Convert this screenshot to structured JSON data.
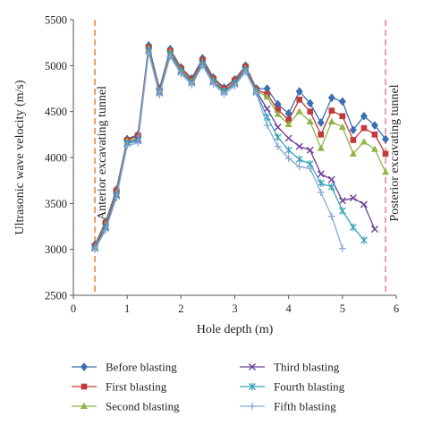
{
  "chart_data": {
    "type": "line",
    "xlabel": "Hole depth (m)",
    "ylabel": "Ultrasonic wave velocity (m/s)",
    "xlim": [
      0,
      6
    ],
    "ylim": [
      2500,
      5500
    ],
    "x_ticks": [
      "0",
      "1",
      "2",
      "3",
      "4",
      "5",
      "6"
    ],
    "y_ticks": [
      "2500",
      "3000",
      "3500",
      "4000",
      "4500",
      "5000",
      "5500"
    ],
    "grid": false,
    "legend_position": "bottom",
    "annotations": [
      {
        "text": "Anterior excavating tunnel",
        "x": 0.4,
        "color": "#e8893a"
      },
      {
        "text": "Posterior excavating tunnel",
        "x": 5.8,
        "color": "#e58c8c"
      }
    ],
    "series": [
      {
        "name": "Before blasting",
        "color": "#3a6fb0",
        "marker": "diamond",
        "x": [
          0.4,
          0.6,
          0.8,
          1.0,
          1.2,
          1.4,
          1.6,
          1.8,
          2.0,
          2.2,
          2.4,
          2.6,
          2.8,
          3.0,
          3.2,
          3.4,
          3.6,
          3.8,
          4.0,
          4.2,
          4.4,
          4.6,
          4.8,
          5.0,
          5.2,
          5.4,
          5.6,
          5.8
        ],
        "values": [
          3050,
          3300,
          3650,
          4200,
          4250,
          5220,
          4750,
          5180,
          4980,
          4860,
          5080,
          4870,
          4760,
          4850,
          5000,
          4750,
          4750,
          4580,
          4480,
          4720,
          4590,
          4380,
          4650,
          4610,
          4300,
          4450,
          4350,
          4200
        ]
      },
      {
        "name": "First blasting",
        "color": "#c0393b",
        "marker": "square",
        "x": [
          0.4,
          0.6,
          0.8,
          1.0,
          1.2,
          1.4,
          1.6,
          1.8,
          2.0,
          2.2,
          2.4,
          2.6,
          2.8,
          3.0,
          3.2,
          3.4,
          3.6,
          3.8,
          4.0,
          4.2,
          4.4,
          4.6,
          4.8,
          5.0,
          5.2,
          5.4,
          5.6,
          5.8
        ],
        "values": [
          3040,
          3290,
          3640,
          4190,
          4240,
          5200,
          4740,
          5160,
          4970,
          4850,
          5060,
          4860,
          4750,
          4840,
          4990,
          4740,
          4690,
          4520,
          4410,
          4630,
          4500,
          4250,
          4510,
          4450,
          4190,
          4320,
          4250,
          4040
        ]
      },
      {
        "name": "Second blasting",
        "color": "#8fb545",
        "marker": "triangle",
        "x": [
          0.4,
          0.6,
          0.8,
          1.0,
          1.2,
          1.4,
          1.6,
          1.8,
          2.0,
          2.2,
          2.4,
          2.6,
          2.8,
          3.0,
          3.2,
          3.4,
          3.6,
          3.8,
          4.0,
          4.2,
          4.4,
          4.6,
          4.8,
          5.0,
          5.2,
          5.4,
          5.6,
          5.8
        ],
        "values": [
          3030,
          3270,
          3620,
          4180,
          4220,
          5190,
          4720,
          5150,
          4950,
          4830,
          5040,
          4840,
          4730,
          4820,
          4970,
          4730,
          4660,
          4470,
          4360,
          4500,
          4390,
          4100,
          4390,
          4330,
          4040,
          4170,
          4090,
          3840
        ]
      },
      {
        "name": "Third blasting",
        "color": "#6b3f98",
        "marker": "x",
        "x": [
          0.4,
          0.6,
          0.8,
          1.0,
          1.2,
          1.4,
          1.6,
          1.8,
          2.0,
          2.2,
          2.4,
          2.6,
          2.8,
          3.0,
          3.2,
          3.4,
          3.6,
          3.8,
          4.0,
          4.2,
          4.4,
          4.6,
          4.8,
          5.0,
          5.2,
          5.4,
          5.6
        ],
        "values": [
          3020,
          3250,
          3600,
          4160,
          4200,
          5170,
          4710,
          5130,
          4940,
          4820,
          5030,
          4830,
          4720,
          4810,
          4960,
          4720,
          4530,
          4330,
          4210,
          4120,
          4080,
          3820,
          3760,
          3530,
          3560,
          3490,
          3220
        ]
      },
      {
        "name": "Fourth blasting",
        "color": "#3aa5b8",
        "marker": "star",
        "x": [
          0.4,
          0.6,
          0.8,
          1.0,
          1.2,
          1.4,
          1.6,
          1.8,
          2.0,
          2.2,
          2.4,
          2.6,
          2.8,
          3.0,
          3.2,
          3.4,
          3.6,
          3.8,
          4.0,
          4.2,
          4.4,
          4.6,
          4.8,
          5.0,
          5.2,
          5.4
        ],
        "values": [
          3010,
          3230,
          3580,
          4150,
          4180,
          5160,
          4700,
          5120,
          4930,
          4810,
          5020,
          4820,
          4710,
          4800,
          4950,
          4710,
          4440,
          4220,
          4080,
          3980,
          3930,
          3720,
          3680,
          3420,
          3240,
          3100
        ]
      },
      {
        "name": "Fifth blasting",
        "color": "#8aa6d6",
        "marker": "plus",
        "x": [
          0.4,
          0.6,
          0.8,
          1.0,
          1.2,
          1.4,
          1.6,
          1.8,
          2.0,
          2.2,
          2.4,
          2.6,
          2.8,
          3.0,
          3.2,
          3.4,
          3.6,
          3.8,
          4.0,
          4.2,
          4.4,
          4.6,
          4.8,
          5.0
        ],
        "values": [
          3000,
          3210,
          3560,
          4130,
          4160,
          5140,
          4680,
          5100,
          4910,
          4790,
          5000,
          4800,
          4690,
          4780,
          4930,
          4700,
          4350,
          4120,
          3990,
          3900,
          3880,
          3620,
          3360,
          3010
        ]
      }
    ]
  }
}
